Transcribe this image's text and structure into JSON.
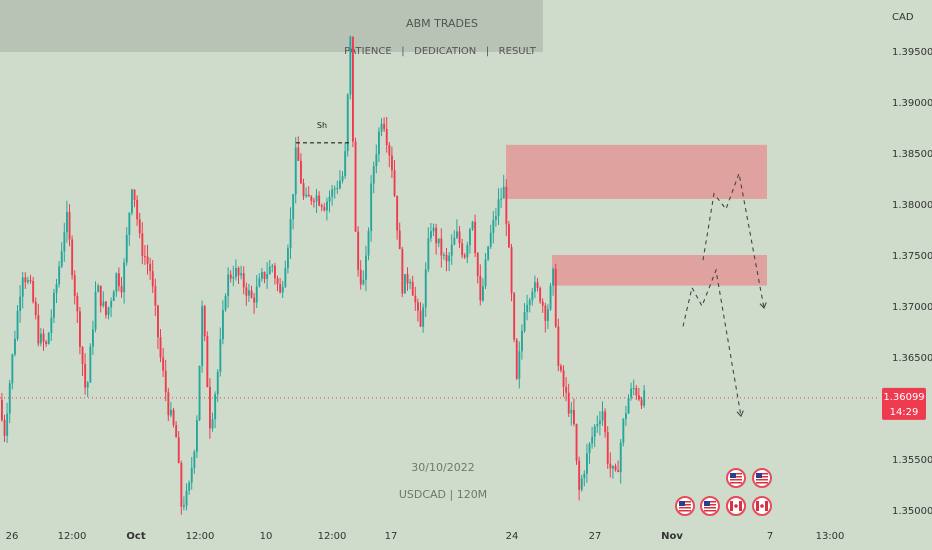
{
  "colors": {
    "background": "#cfdccb",
    "up": "#26a69a",
    "down": "#ef3b4f",
    "zone_fill": "#e58f8f",
    "price_tag": "#ef3b4f",
    "banner": "#b8c2b5",
    "text": "#555555"
  },
  "banner": {
    "title": "ABM TRADES",
    "tagline": "PATIENCE   |   DEDICATION   |   RESULT"
  },
  "watermark": {
    "date": "30/10/2022",
    "symbol": "USDCAD | 120M"
  },
  "axis": {
    "currency": "CAD",
    "price_ticks": [
      "1.39500",
      "1.39000",
      "1.38500",
      "1.38000",
      "1.37500",
      "1.37000",
      "1.36500",
      "1.35500",
      "1.35000"
    ],
    "time_ticks": [
      "26",
      "12:00",
      "Oct",
      "12:00",
      "10",
      "12:00",
      "17",
      "24",
      "27",
      "Nov",
      "7",
      "13:00"
    ]
  },
  "current_price": {
    "price": "1.36099",
    "countdown": "14:29"
  },
  "annotations": {
    "swing_high_label": "Sh"
  },
  "icons": [
    "us-flag-icon",
    "us-flag-icon",
    "us-flag-icon",
    "us-flag-icon",
    "ca-flag-icon",
    "ca-flag-icon",
    "us-flag-icon"
  ],
  "chart_data": {
    "type": "candlestick",
    "symbol": "USDCAD",
    "timeframe": "120M",
    "ylim": [
      1.3485,
      1.3985
    ],
    "price_ticks": [
      1.395,
      1.39,
      1.385,
      1.38,
      1.375,
      1.37,
      1.365,
      1.355,
      1.35
    ],
    "current_price": 1.36099,
    "series": [
      {
        "name": "price path",
        "points": [
          [
            0,
            1.3608
          ],
          [
            6,
            1.3575
          ],
          [
            14,
            1.365
          ],
          [
            24,
            1.3735
          ],
          [
            33,
            1.3715
          ],
          [
            40,
            1.367
          ],
          [
            48,
            1.366
          ],
          [
            58,
            1.372
          ],
          [
            68,
            1.379
          ],
          [
            78,
            1.37
          ],
          [
            88,
            1.361
          ],
          [
            98,
            1.372
          ],
          [
            108,
            1.369
          ],
          [
            118,
            1.373
          ],
          [
            124,
            1.372
          ],
          [
            134,
            1.3825
          ],
          [
            142,
            1.376
          ],
          [
            152,
            1.3735
          ],
          [
            162,
            1.365
          ],
          [
            170,
            1.36
          ],
          [
            178,
            1.357
          ],
          [
            183,
            1.3505
          ],
          [
            190,
            1.3515
          ],
          [
            198,
            1.358
          ],
          [
            204,
            1.37
          ],
          [
            212,
            1.358
          ],
          [
            220,
            1.364
          ],
          [
            228,
            1.3725
          ],
          [
            236,
            1.3735
          ],
          [
            246,
            1.372
          ],
          [
            254,
            1.3705
          ],
          [
            264,
            1.3728
          ],
          [
            274,
            1.374
          ],
          [
            282,
            1.371
          ],
          [
            292,
            1.378
          ],
          [
            298,
            1.3855
          ],
          [
            306,
            1.38
          ],
          [
            316,
            1.381
          ],
          [
            326,
            1.38
          ],
          [
            336,
            1.3815
          ],
          [
            346,
            1.383
          ],
          [
            352,
            1.396
          ],
          [
            358,
            1.374
          ],
          [
            366,
            1.372
          ],
          [
            374,
            1.383
          ],
          [
            384,
            1.389
          ],
          [
            394,
            1.3835
          ],
          [
            404,
            1.372
          ],
          [
            412,
            1.373
          ],
          [
            422,
            1.3675
          ],
          [
            432,
            1.378
          ],
          [
            440,
            1.376
          ],
          [
            448,
            1.374
          ],
          [
            458,
            1.377
          ],
          [
            466,
            1.375
          ],
          [
            474,
            1.379
          ],
          [
            482,
            1.37
          ],
          [
            490,
            1.376
          ],
          [
            500,
            1.38
          ],
          [
            506,
            1.3815
          ],
          [
            512,
            1.373
          ],
          [
            518,
            1.362
          ],
          [
            526,
            1.37
          ],
          [
            534,
            1.372
          ],
          [
            542,
            1.371
          ],
          [
            548,
            1.369
          ],
          [
            555,
            1.373
          ],
          [
            560,
            1.364
          ],
          [
            568,
            1.361
          ],
          [
            576,
            1.358
          ],
          [
            580,
            1.3515
          ],
          [
            588,
            1.355
          ],
          [
            596,
            1.358
          ],
          [
            604,
            1.36
          ],
          [
            610,
            1.3545
          ],
          [
            618,
            1.353
          ],
          [
            624,
            1.358
          ],
          [
            630,
            1.361
          ],
          [
            636,
            1.362
          ],
          [
            642,
            1.36099
          ]
        ]
      }
    ],
    "supply_zones": [
      {
        "name": "upper zone",
        "from": 1.3805,
        "to": 1.3858
      },
      {
        "name": "lower zone",
        "from": 1.372,
        "to": 1.375
      }
    ],
    "swing_high": {
      "label": "Sh",
      "price": 1.386
    },
    "projections": [
      {
        "name": "path via upper zone",
        "points": [
          [
            703,
            1.3745
          ],
          [
            714,
            1.381
          ],
          [
            726,
            1.3795
          ],
          [
            739,
            1.383
          ],
          [
            764,
            1.3698
          ]
        ]
      },
      {
        "name": "path via lower zone",
        "points": [
          [
            683,
            1.368
          ],
          [
            692,
            1.3718
          ],
          [
            702,
            1.37
          ],
          [
            716,
            1.3735
          ],
          [
            741,
            1.3592
          ]
        ]
      }
    ]
  }
}
